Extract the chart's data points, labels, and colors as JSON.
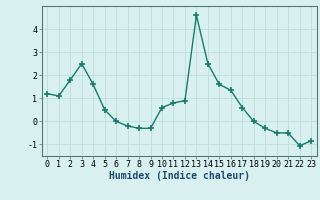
{
  "x": [
    0,
    1,
    2,
    3,
    4,
    5,
    6,
    7,
    8,
    9,
    10,
    11,
    12,
    13,
    14,
    15,
    16,
    17,
    18,
    19,
    20,
    21,
    22,
    23
  ],
  "y": [
    1.2,
    1.1,
    1.8,
    2.5,
    1.6,
    0.5,
    0.0,
    -0.2,
    -0.3,
    -0.3,
    0.6,
    0.8,
    0.9,
    4.6,
    2.5,
    1.6,
    1.35,
    0.6,
    0.0,
    -0.3,
    -0.5,
    -0.5,
    -1.05,
    -0.85
  ],
  "line_color": "#1a7a6e",
  "marker": "+",
  "marker_size": 4,
  "bg_color": "#d8f0f0",
  "grid_color": "#c0dede",
  "xlabel": "Humidex (Indice chaleur)",
  "xlim": [
    -0.5,
    23.5
  ],
  "ylim": [
    -1.5,
    5.0
  ],
  "yticks": [
    -1,
    0,
    1,
    2,
    3,
    4
  ],
  "xticks": [
    0,
    1,
    2,
    3,
    4,
    5,
    6,
    7,
    8,
    9,
    10,
    11,
    12,
    13,
    14,
    15,
    16,
    17,
    18,
    19,
    20,
    21,
    22,
    23
  ],
  "xlabel_fontsize": 7,
  "tick_fontsize": 6,
  "xlabel_color": "#1a4a6e"
}
